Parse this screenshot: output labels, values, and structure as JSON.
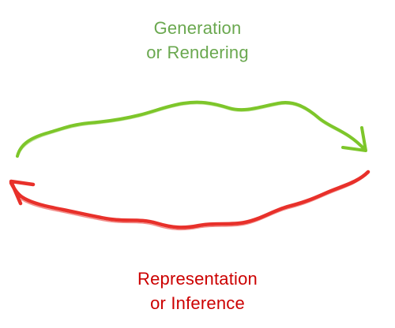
{
  "top_label": {
    "line1": "Generation",
    "line2": "or Rendering",
    "color": "#6aa84f"
  },
  "bottom_label": {
    "line1": "Representation",
    "line2": "or Inference",
    "color": "#cc0000"
  },
  "arrows": {
    "top": {
      "direction": "left-to-right",
      "color": "#7dc62a"
    },
    "bottom": {
      "direction": "right-to-left",
      "color": "#e8302a"
    }
  }
}
